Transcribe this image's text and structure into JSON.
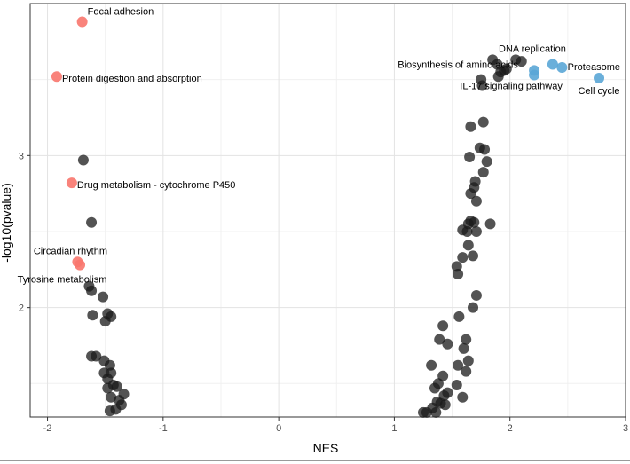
{
  "chart_data": {
    "type": "scatter",
    "xlabel": "NES",
    "ylabel": "-log10(pvalue)",
    "xlim": [
      -2.15,
      3.0
    ],
    "ylim": [
      1.28,
      4.0
    ],
    "x_ticks": [
      -2,
      -1,
      0,
      1,
      2,
      3
    ],
    "y_ticks": [
      2,
      3
    ],
    "grid": true,
    "colors": {
      "ns": "#1a1a1a",
      "down": "#f8766d",
      "up": "#5aa6d6",
      "grid_major": "#e3e3e3",
      "grid_minor": "#f0f0f0",
      "frame": "#333333"
    },
    "labeled_points": [
      {
        "label": "Focal adhesion",
        "x": -1.7,
        "y": 3.88,
        "group": "down"
      },
      {
        "label": "Protein digestion and absorption",
        "x": -1.92,
        "y": 3.52,
        "group": "down"
      },
      {
        "label": "Drug metabolism - cytochrome P450",
        "x": -1.79,
        "y": 2.82,
        "group": "down"
      },
      {
        "label": "Circadian rhythm",
        "x": -1.74,
        "y": 2.3,
        "group": "down"
      },
      {
        "label": "Tyrosine metabolism",
        "x": -1.72,
        "y": 2.28,
        "group": "down"
      },
      {
        "label": "DNA replication",
        "x": 2.37,
        "y": 3.6,
        "group": "up"
      },
      {
        "label": "Biosynthesis of amino acids",
        "x": 2.21,
        "y": 3.56,
        "group": "up"
      },
      {
        "label": "Proteasome",
        "x": 2.45,
        "y": 3.58,
        "group": "up"
      },
      {
        "label": "IL-17 signaling pathway",
        "x": 2.21,
        "y": 3.53,
        "group": "up"
      },
      {
        "label": "Cell cycle",
        "x": 2.77,
        "y": 3.51,
        "group": "up"
      }
    ],
    "points": [
      {
        "x": -1.69,
        "y": 2.97
      },
      {
        "x": -1.62,
        "y": 2.56
      },
      {
        "x": -1.64,
        "y": 2.14
      },
      {
        "x": -1.62,
        "y": 2.11
      },
      {
        "x": -1.52,
        "y": 2.07
      },
      {
        "x": -1.61,
        "y": 1.95
      },
      {
        "x": -1.48,
        "y": 1.96
      },
      {
        "x": -1.45,
        "y": 1.94
      },
      {
        "x": -1.5,
        "y": 1.91
      },
      {
        "x": -1.62,
        "y": 1.68
      },
      {
        "x": -1.58,
        "y": 1.68
      },
      {
        "x": -1.51,
        "y": 1.65
      },
      {
        "x": -1.46,
        "y": 1.62
      },
      {
        "x": -1.51,
        "y": 1.57
      },
      {
        "x": -1.45,
        "y": 1.57
      },
      {
        "x": -1.48,
        "y": 1.53
      },
      {
        "x": -1.43,
        "y": 1.49
      },
      {
        "x": -1.4,
        "y": 1.48
      },
      {
        "x": -1.48,
        "y": 1.47
      },
      {
        "x": -1.34,
        "y": 1.43
      },
      {
        "x": -1.45,
        "y": 1.41
      },
      {
        "x": -1.38,
        "y": 1.39
      },
      {
        "x": -1.36,
        "y": 1.36
      },
      {
        "x": -1.41,
        "y": 1.33
      },
      {
        "x": -1.46,
        "y": 1.32
      },
      {
        "x": 1.85,
        "y": 3.63
      },
      {
        "x": 1.89,
        "y": 3.6
      },
      {
        "x": 1.95,
        "y": 3.56
      },
      {
        "x": 1.92,
        "y": 3.55
      },
      {
        "x": 1.9,
        "y": 3.52
      },
      {
        "x": 1.97,
        "y": 3.57
      },
      {
        "x": 2.05,
        "y": 3.63
      },
      {
        "x": 2.1,
        "y": 3.62
      },
      {
        "x": 1.75,
        "y": 3.5
      },
      {
        "x": 1.76,
        "y": 3.46
      },
      {
        "x": 1.77,
        "y": 3.22
      },
      {
        "x": 1.66,
        "y": 3.19
      },
      {
        "x": 1.74,
        "y": 3.05
      },
      {
        "x": 1.78,
        "y": 3.04
      },
      {
        "x": 1.65,
        "y": 2.99
      },
      {
        "x": 1.8,
        "y": 2.96
      },
      {
        "x": 1.77,
        "y": 2.89
      },
      {
        "x": 1.7,
        "y": 2.83
      },
      {
        "x": 1.69,
        "y": 2.79
      },
      {
        "x": 1.66,
        "y": 2.75
      },
      {
        "x": 1.71,
        "y": 2.7
      },
      {
        "x": 1.66,
        "y": 2.57
      },
      {
        "x": 1.64,
        "y": 2.55
      },
      {
        "x": 1.69,
        "y": 2.56
      },
      {
        "x": 1.83,
        "y": 2.55
      },
      {
        "x": 1.59,
        "y": 2.51
      },
      {
        "x": 1.63,
        "y": 2.5
      },
      {
        "x": 1.71,
        "y": 2.5
      },
      {
        "x": 1.64,
        "y": 2.41
      },
      {
        "x": 1.59,
        "y": 2.33
      },
      {
        "x": 1.68,
        "y": 2.34
      },
      {
        "x": 1.54,
        "y": 2.27
      },
      {
        "x": 1.55,
        "y": 2.22
      },
      {
        "x": 1.71,
        "y": 2.08
      },
      {
        "x": 1.68,
        "y": 2.0
      },
      {
        "x": 1.56,
        "y": 1.94
      },
      {
        "x": 1.42,
        "y": 1.88
      },
      {
        "x": 1.39,
        "y": 1.79
      },
      {
        "x": 1.46,
        "y": 1.76
      },
      {
        "x": 1.62,
        "y": 1.79
      },
      {
        "x": 1.6,
        "y": 1.73
      },
      {
        "x": 1.64,
        "y": 1.65
      },
      {
        "x": 1.32,
        "y": 1.62
      },
      {
        "x": 1.55,
        "y": 1.62
      },
      {
        "x": 1.62,
        "y": 1.58
      },
      {
        "x": 1.42,
        "y": 1.55
      },
      {
        "x": 1.38,
        "y": 1.5
      },
      {
        "x": 1.54,
        "y": 1.49
      },
      {
        "x": 1.35,
        "y": 1.47
      },
      {
        "x": 1.46,
        "y": 1.44
      },
      {
        "x": 1.43,
        "y": 1.42
      },
      {
        "x": 1.59,
        "y": 1.41
      },
      {
        "x": 1.37,
        "y": 1.38
      },
      {
        "x": 1.4,
        "y": 1.37
      },
      {
        "x": 1.44,
        "y": 1.36
      },
      {
        "x": 1.33,
        "y": 1.34
      },
      {
        "x": 1.28,
        "y": 1.31
      },
      {
        "x": 1.25,
        "y": 1.31
      },
      {
        "x": 1.36,
        "y": 1.31
      }
    ]
  }
}
